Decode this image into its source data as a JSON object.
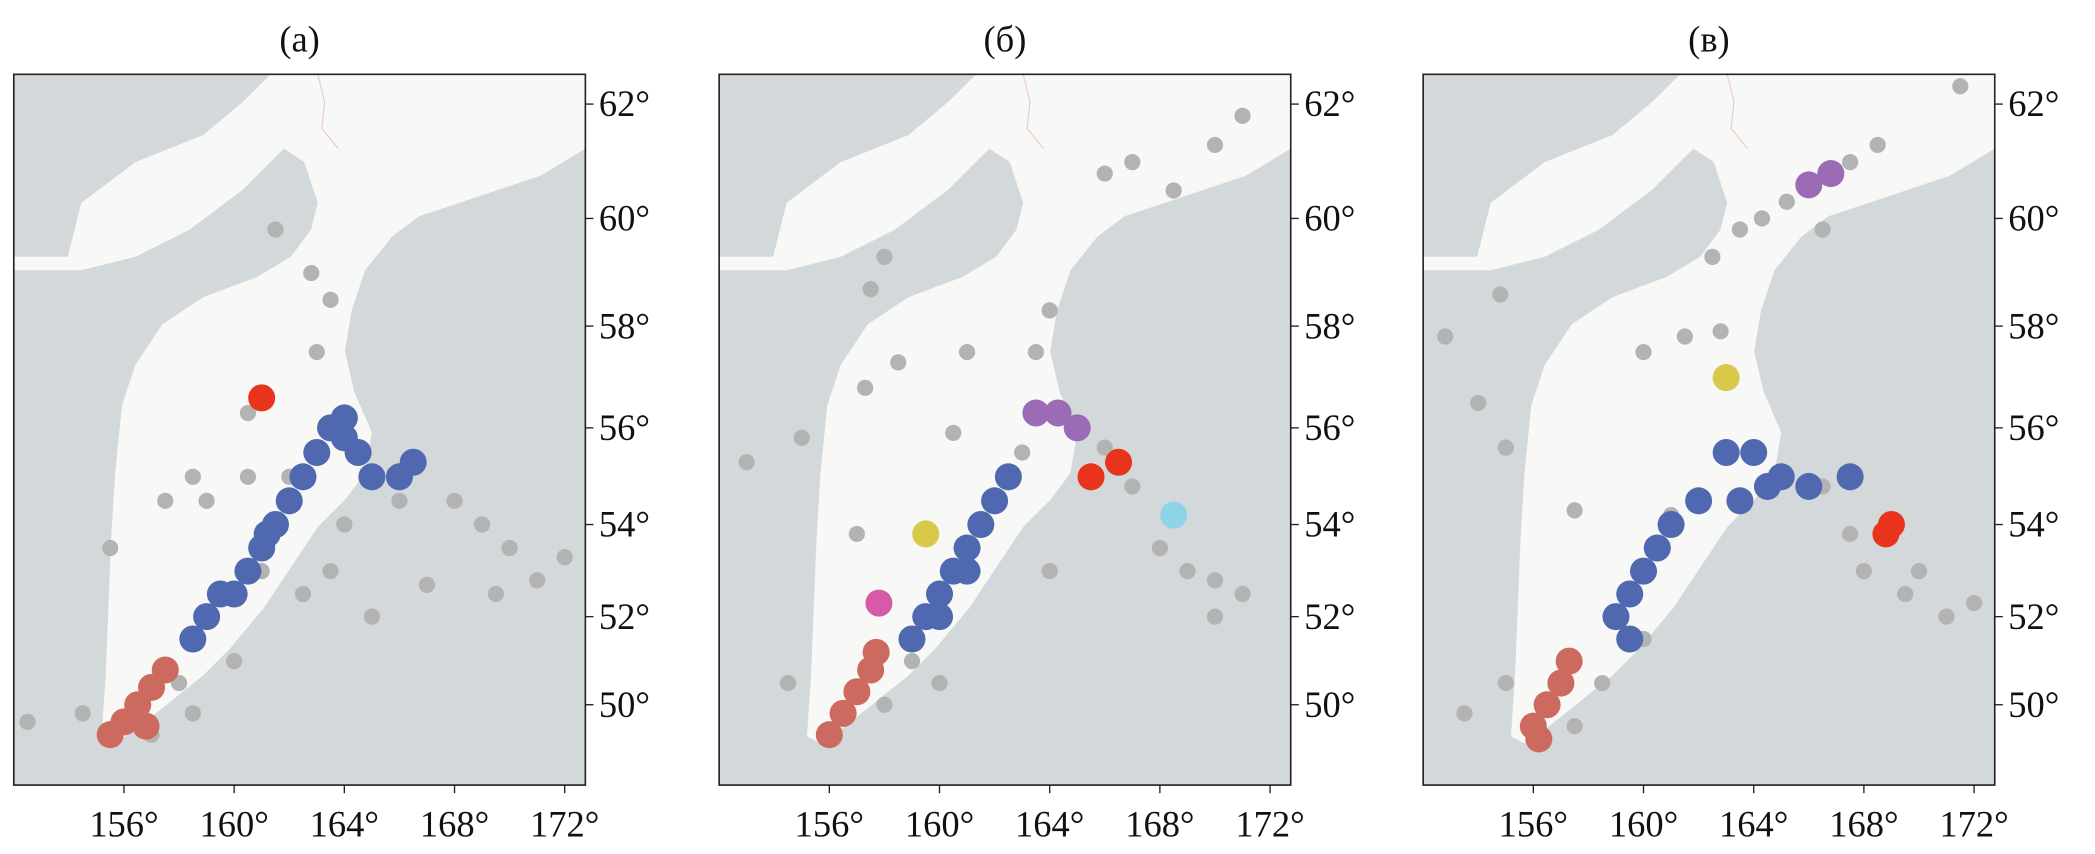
{
  "chart_data": [
    {
      "type": "scatter",
      "title": "(a)",
      "projection": "mercator",
      "xlim": [
        152,
        172.75
      ],
      "ylim": [
        48.1,
        62.5
      ],
      "xticks": [
        {
          "value": 156,
          "label": "156°"
        },
        {
          "value": 160,
          "label": "160°"
        },
        {
          "value": 164,
          "label": "164°"
        },
        {
          "value": 168,
          "label": "168°"
        },
        {
          "value": 172,
          "label": "172°"
        }
      ],
      "yticks": [
        {
          "value": 50,
          "label": "50°"
        },
        {
          "value": 52,
          "label": "52°"
        },
        {
          "value": 54,
          "label": "54°"
        },
        {
          "value": 56,
          "label": "56°"
        },
        {
          "value": 58,
          "label": "58°"
        },
        {
          "value": 60,
          "label": "60°"
        },
        {
          "value": 62,
          "label": "62°"
        }
      ],
      "series": [
        {
          "color": "#b3b3b3",
          "x": [
            163,
            163.5,
            162.8,
            161.5,
            162,
            160.5,
            159,
            161,
            162.5,
            160,
            158,
            157,
            158.5,
            166,
            168,
            169,
            170,
            169.5,
            171,
            172,
            164,
            163.5,
            160.5,
            158.5,
            157.5,
            155.5,
            154.5,
            152.5,
            165,
            167
          ],
          "y": [
            57.5,
            58.5,
            59,
            59.8,
            55,
            55,
            54.5,
            53,
            52.5,
            51,
            50.5,
            49.3,
            49.8,
            54.5,
            54.5,
            54,
            53.5,
            52.5,
            52.8,
            53.3,
            54,
            53,
            56.3,
            55,
            54.5,
            53.5,
            49.8,
            49.6,
            52,
            52.7
          ]
        },
        {
          "color": "#cd6a5f",
          "x": [
            155.5,
            156,
            156.5,
            157,
            157.5,
            156.8
          ],
          "y": [
            49.3,
            49.6,
            50,
            50.4,
            50.8,
            49.5
          ]
        },
        {
          "color": "#5068b0",
          "x": [
            158.5,
            159,
            159.5,
            160,
            160.5,
            161,
            161.5,
            162,
            162.5,
            163,
            163.5,
            164,
            164.5,
            165,
            166,
            166.5,
            164,
            161.2
          ],
          "y": [
            51.5,
            52,
            52.5,
            52.5,
            53,
            53.5,
            54,
            54.5,
            55,
            55.5,
            56,
            56.2,
            55.5,
            55,
            55,
            55.3,
            55.8,
            53.8
          ]
        },
        {
          "color": "#e8341c",
          "x": [
            161
          ],
          "y": [
            56.6
          ]
        }
      ]
    },
    {
      "type": "scatter",
      "title": "(б)",
      "projection": "mercator",
      "xlim": [
        152,
        172.75
      ],
      "ylim": [
        48.1,
        62.5
      ],
      "xticks": [
        {
          "value": 156,
          "label": "156°"
        },
        {
          "value": 160,
          "label": "160°"
        },
        {
          "value": 164,
          "label": "164°"
        },
        {
          "value": 168,
          "label": "168°"
        },
        {
          "value": 172,
          "label": "172°"
        }
      ],
      "yticks": [
        {
          "value": 50,
          "label": "50°"
        },
        {
          "value": 52,
          "label": "52°"
        },
        {
          "value": 54,
          "label": "54°"
        },
        {
          "value": 56,
          "label": "56°"
        },
        {
          "value": 58,
          "label": "58°"
        },
        {
          "value": 60,
          "label": "60°"
        },
        {
          "value": 62,
          "label": "62°"
        }
      ],
      "series": [
        {
          "color": "#b3b3b3",
          "x": [
            171,
            170,
            166,
            167,
            168.5,
            158,
            157.5,
            164,
            163.5,
            161,
            158.5,
            157.3,
            160.5,
            155,
            153,
            157,
            167,
            168,
            169,
            170,
            171,
            170,
            160,
            158,
            159,
            164,
            154.5,
            166,
            163
          ],
          "y": [
            61.8,
            61.3,
            60.8,
            61,
            60.5,
            59.3,
            58.7,
            58.3,
            57.5,
            57.5,
            57.3,
            56.8,
            55.9,
            55.8,
            55.3,
            53.8,
            54.8,
            53.5,
            53,
            52.8,
            52.5,
            52,
            50.5,
            50,
            51,
            53,
            50.5,
            55.6,
            55.5
          ]
        },
        {
          "color": "#cd6a5f",
          "x": [
            156,
            156.5,
            157,
            157.5,
            157.7
          ],
          "y": [
            49.3,
            49.8,
            50.3,
            50.8,
            51.2
          ]
        },
        {
          "color": "#5068b0",
          "x": [
            159,
            159.5,
            160,
            160.5,
            161,
            161.5,
            162,
            162.5,
            160,
            161
          ],
          "y": [
            51.5,
            52,
            52.5,
            53,
            53.5,
            54,
            54.5,
            55,
            52,
            53
          ]
        },
        {
          "color": "#9b6bb5",
          "x": [
            163.5,
            164.3,
            165
          ],
          "y": [
            56.3,
            56.3,
            56
          ]
        },
        {
          "color": "#e8341c",
          "x": [
            165.5,
            166.5
          ],
          "y": [
            55,
            55.3
          ]
        },
        {
          "color": "#d8c94a",
          "x": [
            159.5
          ],
          "y": [
            53.8
          ]
        },
        {
          "color": "#d65aa8",
          "x": [
            157.8
          ],
          "y": [
            52.3
          ]
        },
        {
          "color": "#8fd3e8",
          "x": [
            168.5
          ],
          "y": [
            54.2
          ]
        }
      ]
    },
    {
      "type": "scatter",
      "title": "(в)",
      "projection": "mercator",
      "xlim": [
        152,
        172.75
      ],
      "ylim": [
        48.1,
        62.5
      ],
      "xticks": [
        {
          "value": 156,
          "label": "156°"
        },
        {
          "value": 160,
          "label": "160°"
        },
        {
          "value": 164,
          "label": "164°"
        },
        {
          "value": 168,
          "label": "168°"
        },
        {
          "value": 172,
          "label": "172°"
        }
      ],
      "yticks": [
        {
          "value": 50,
          "label": "50°"
        },
        {
          "value": 52,
          "label": "52°"
        },
        {
          "value": 54,
          "label": "54°"
        },
        {
          "value": 56,
          "label": "56°"
        },
        {
          "value": 58,
          "label": "58°"
        },
        {
          "value": 60,
          "label": "60°"
        },
        {
          "value": 62,
          "label": "62°"
        }
      ],
      "series": [
        {
          "color": "#b3b3b3",
          "x": [
            171.5,
            168.5,
            167.5,
            166.5,
            165.2,
            164.3,
            163.5,
            162.5,
            161.5,
            162.8,
            160,
            154.8,
            152.8,
            154,
            155,
            157.5,
            160,
            161,
            170,
            171,
            172,
            169.5,
            166.5,
            167.5,
            168,
            158.5,
            160,
            157.5,
            155,
            153.5
          ],
          "y": [
            62.3,
            61.3,
            61,
            59.8,
            60.3,
            60,
            59.8,
            59.3,
            57.8,
            57.9,
            57.5,
            58.6,
            57.8,
            56.5,
            55.6,
            54.3,
            53,
            54.2,
            53,
            52,
            52.3,
            52.5,
            54.8,
            53.8,
            53,
            50.5,
            51.5,
            49.5,
            50.5,
            49.8
          ]
        },
        {
          "color": "#cd6a5f",
          "x": [
            156,
            156.5,
            157,
            157.3,
            156.2
          ],
          "y": [
            49.5,
            50,
            50.5,
            51,
            49.2
          ]
        },
        {
          "color": "#5068b0",
          "x": [
            163,
            164,
            165,
            166,
            167.5,
            162,
            161,
            160.5,
            160,
            159.5,
            159,
            159.5,
            163.5,
            164.5
          ],
          "y": [
            55.5,
            55.5,
            55,
            54.8,
            55,
            54.5,
            54,
            53.5,
            53,
            52.5,
            52,
            51.5,
            54.5,
            54.8
          ]
        },
        {
          "color": "#9b6bb5",
          "x": [
            166,
            166.8
          ],
          "y": [
            60.6,
            60.8
          ]
        },
        {
          "color": "#d8c94a",
          "x": [
            163
          ],
          "y": [
            57
          ]
        },
        {
          "color": "#e8341c",
          "x": [
            169,
            168.8
          ],
          "y": [
            54,
            53.8
          ]
        }
      ]
    }
  ]
}
